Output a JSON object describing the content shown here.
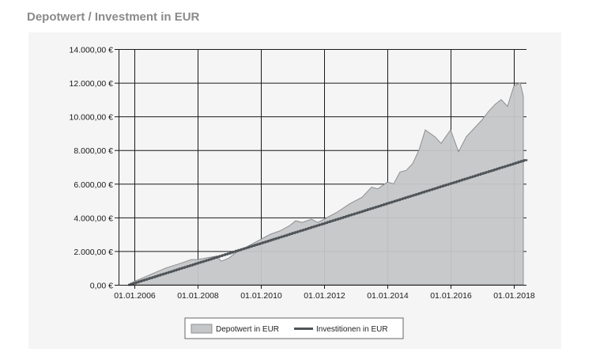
{
  "heading": "Depotwert / Investment in EUR",
  "colors": {
    "area_fill": "#c4c6c8",
    "area_stroke": "#8d8f92",
    "line": "#4f5458",
    "grid": "#1a1a1a",
    "panel": "#f5f5f5",
    "heading": "#8a8a8a"
  },
  "chart_data": {
    "type": "area",
    "title": "Depotwert / Investment in EUR",
    "xlabel": "",
    "ylabel": "",
    "xlim": [
      2005.5,
      2018.4
    ],
    "ylim": [
      0,
      14000
    ],
    "y_ticks": [
      0,
      2000,
      4000,
      6000,
      8000,
      10000,
      12000,
      14000
    ],
    "y_tick_labels": [
      "0,00 €",
      "2.000,00 €",
      "4.000,00 €",
      "6.000,00 €",
      "8.000,00 €",
      "10.000,00 €",
      "12.000,00 €",
      "14.000,00 €"
    ],
    "x_ticks": [
      2006,
      2008,
      2010,
      2012,
      2014,
      2016,
      2018
    ],
    "x_tick_labels": [
      "01.01.2006",
      "01.01.2008",
      "01.01.2010",
      "01.01.2012",
      "01.01.2014",
      "01.01.2016",
      "01.01.2018"
    ],
    "grid": true,
    "legend_position": "bottom-center",
    "series": [
      {
        "name": "Depotwert in EUR",
        "kind": "area",
        "x": [
          2005.8,
          2006.0,
          2006.5,
          2007.0,
          2007.5,
          2007.8,
          2008.0,
          2008.3,
          2008.6,
          2008.75,
          2009.0,
          2009.2,
          2009.5,
          2010.0,
          2010.3,
          2010.6,
          2010.9,
          2011.1,
          2011.3,
          2011.6,
          2011.8,
          2012.0,
          2012.4,
          2012.8,
          2013.2,
          2013.5,
          2013.7,
          2014.0,
          2014.2,
          2014.4,
          2014.6,
          2014.8,
          2015.0,
          2015.2,
          2015.5,
          2015.7,
          2016.0,
          2016.25,
          2016.5,
          2016.8,
          2017.0,
          2017.2,
          2017.4,
          2017.6,
          2017.8,
          2018.0,
          2018.2,
          2018.3
        ],
        "values": [
          0,
          200,
          600,
          1000,
          1300,
          1500,
          1500,
          1600,
          1700,
          1400,
          1600,
          1900,
          2200,
          2700,
          3000,
          3200,
          3500,
          3800,
          3700,
          3900,
          3700,
          3900,
          4300,
          4800,
          5200,
          5800,
          5700,
          6100,
          6000,
          6700,
          6800,
          7200,
          8000,
          9200,
          8800,
          8400,
          9200,
          7900,
          8800,
          9400,
          9800,
          10300,
          10700,
          11000,
          10600,
          11800,
          12000,
          11200
        ]
      },
      {
        "name": "Investitionen in EUR",
        "kind": "line",
        "x": [
          2005.8,
          2018.4
        ],
        "values": [
          0,
          7450
        ]
      }
    ]
  }
}
